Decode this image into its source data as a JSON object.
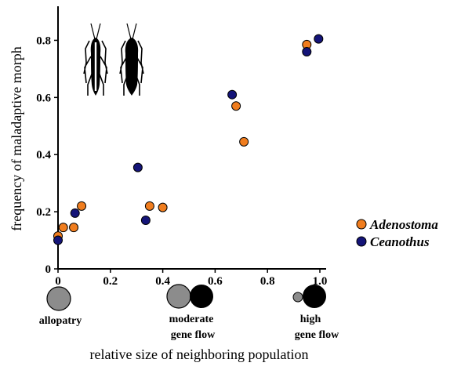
{
  "chart_data": {
    "type": "scatter",
    "xlabel": "relative size of neighboring population",
    "ylabel": "frequency of maladaptive morph",
    "xlim": [
      0,
      1.0
    ],
    "ylim": [
      0,
      0.9
    ],
    "x_ticks": [
      {
        "value": 0,
        "label": "0"
      },
      {
        "value": 0.2,
        "label": "0.2"
      },
      {
        "value": 0.4,
        "label": "0.4"
      },
      {
        "value": 0.6,
        "label": "0.6"
      },
      {
        "value": 0.8,
        "label": "0.8"
      },
      {
        "value": 1.0,
        "label": "1.0"
      }
    ],
    "y_ticks": [
      {
        "value": 0,
        "label": "0"
      },
      {
        "value": 0.2,
        "label": "0.2"
      },
      {
        "value": 0.4,
        "label": "0.4"
      },
      {
        "value": 0.6,
        "label": "0.6"
      },
      {
        "value": 0.8,
        "label": "0.8"
      }
    ],
    "legend_position": "right",
    "series": [
      {
        "name": "Adenostoma",
        "color": "#f07d1e",
        "points": [
          {
            "x": 0.0,
            "y": 0.115
          },
          {
            "x": 0.02,
            "y": 0.145
          },
          {
            "x": 0.06,
            "y": 0.145
          },
          {
            "x": 0.09,
            "y": 0.22
          },
          {
            "x": 0.35,
            "y": 0.22
          },
          {
            "x": 0.4,
            "y": 0.215
          },
          {
            "x": 0.68,
            "y": 0.57
          },
          {
            "x": 0.71,
            "y": 0.445
          },
          {
            "x": 0.95,
            "y": 0.785
          }
        ]
      },
      {
        "name": "Ceanothus",
        "color": "#141478",
        "points": [
          {
            "x": 0.0,
            "y": 0.1
          },
          {
            "x": 0.065,
            "y": 0.195
          },
          {
            "x": 0.305,
            "y": 0.355
          },
          {
            "x": 0.335,
            "y": 0.17
          },
          {
            "x": 0.665,
            "y": 0.61
          },
          {
            "x": 0.95,
            "y": 0.76
          },
          {
            "x": 0.995,
            "y": 0.805
          }
        ]
      }
    ]
  },
  "scenarios": [
    {
      "line1": "allopatry",
      "line2": ""
    },
    {
      "line1": "moderate",
      "line2": "gene flow"
    },
    {
      "line1": "high",
      "line2": "gene flow"
    }
  ],
  "colors": {
    "gray_population": "#8c8c8c",
    "black_population": "#000000",
    "axis": "#000000"
  },
  "icons": [
    "striped-stick-insect-icon",
    "unstriped-stick-insect-icon"
  ]
}
